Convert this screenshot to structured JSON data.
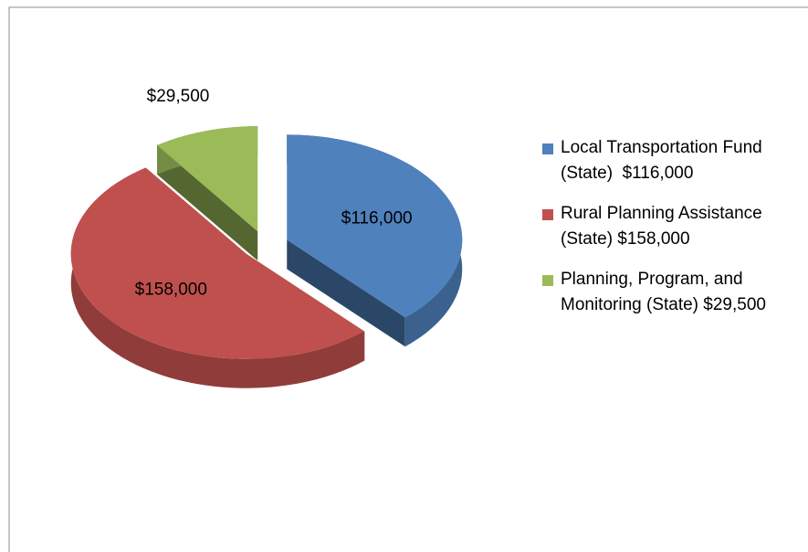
{
  "chart_data": {
    "type": "pie3d",
    "categories": [
      "Local Transportation Fund  (State)  $116,000",
      "Rural Planning Assistance (State) $158,000",
      "Planning, Program, and Monitoring (State) $29,500"
    ],
    "values": [
      116000,
      158000,
      29500
    ],
    "value_labels": [
      "$116,000",
      "$158,000",
      "$29,500"
    ],
    "colors": [
      "#4f81bd",
      "#c0504d",
      "#9bbb59"
    ],
    "legend": "right"
  }
}
